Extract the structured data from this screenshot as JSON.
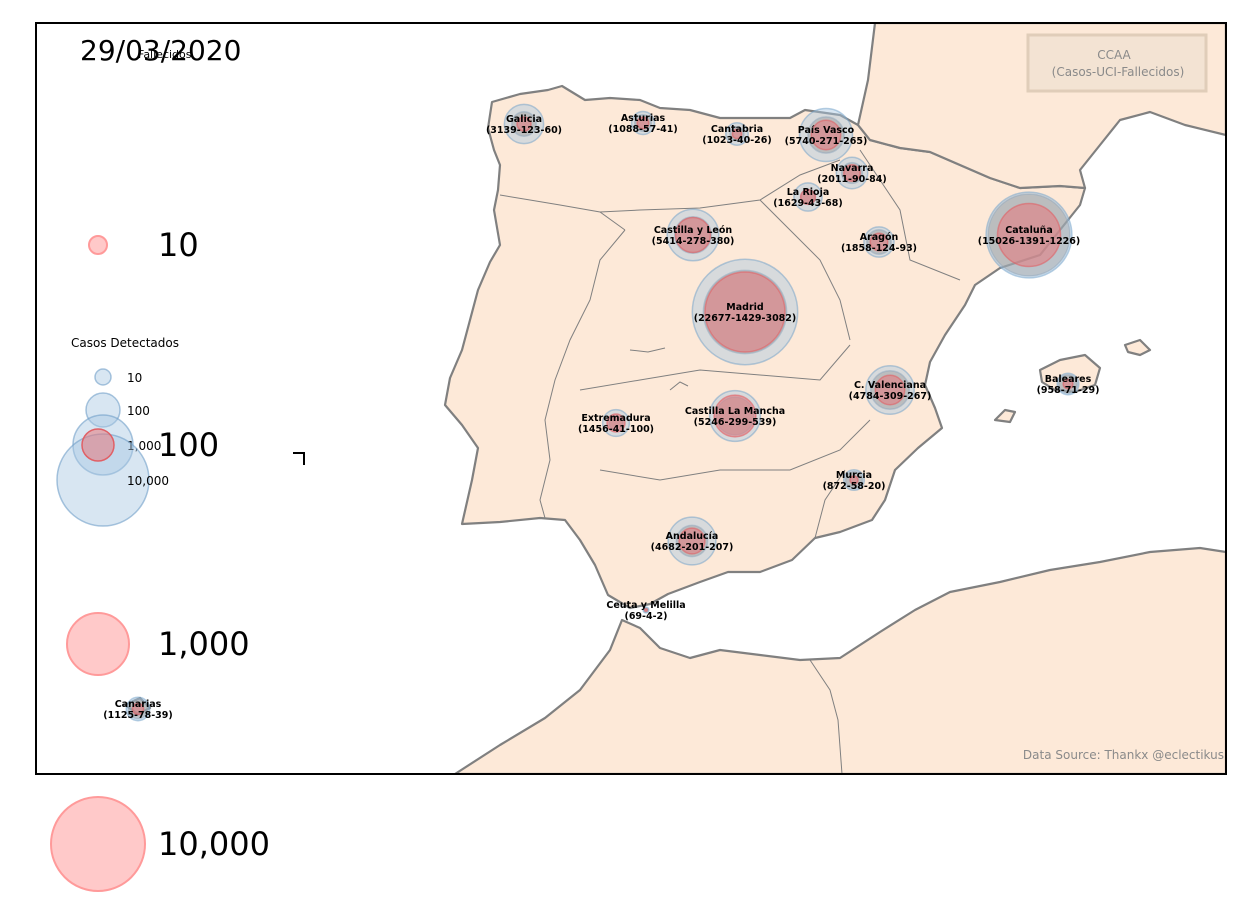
{
  "date": "29/03/2020",
  "legend_box": {
    "title": "CCAA",
    "subtitle": "(Casos-UCI-Fallecidos)"
  },
  "source": "Data Source: Thankx @eclectikus",
  "legend_deaths": {
    "title": "Fallecidos",
    "items": [
      {
        "value": 10,
        "label": "10"
      },
      {
        "value": 100,
        "label": "100"
      },
      {
        "value": 1000,
        "label": "1,000"
      },
      {
        "value": 10000,
        "label": "10,000"
      }
    ]
  },
  "legend_cases": {
    "title": "Casos Detectados",
    "items": [
      {
        "value": 10,
        "label": "10"
      },
      {
        "value": 100,
        "label": "100"
      },
      {
        "value": 1000,
        "label": "1,000"
      },
      {
        "value": 10000,
        "label": "10,000"
      }
    ]
  },
  "colors": {
    "land": "#fde9d8",
    "coast": "#808080",
    "cases": "#a9c8e2",
    "uci": "#9a9a9a",
    "deaths": "#e8787c"
  },
  "regions": [
    {
      "name": "Galicia",
      "label": "(3139-123-60)",
      "cases": 3139,
      "uci": 123,
      "deaths": 60
    },
    {
      "name": "Asturias",
      "label": "(1088-57-41)",
      "cases": 1088,
      "uci": 57,
      "deaths": 41
    },
    {
      "name": "Cantabria",
      "label": "(1023-40-26)",
      "cases": 1023,
      "uci": 40,
      "deaths": 26
    },
    {
      "name": "País Vasco",
      "label": "(5740-271-265)",
      "cases": 5740,
      "uci": 271,
      "deaths": 265
    },
    {
      "name": "Navarra",
      "label": "(2011-90-84)",
      "cases": 2011,
      "uci": 90,
      "deaths": 84
    },
    {
      "name": "La Rioja",
      "label": "(1629-43-68)",
      "cases": 1629,
      "uci": 43,
      "deaths": 68
    },
    {
      "name": "Castilla y León",
      "label": "(5414-278-380)",
      "cases": 5414,
      "uci": 278,
      "deaths": 380
    },
    {
      "name": "Aragón",
      "label": "(1858-124-93)",
      "cases": 1858,
      "uci": 124,
      "deaths": 93
    },
    {
      "name": "Cataluña",
      "label": "(15026-1391-1226)",
      "cases": 15026,
      "uci": 1391,
      "deaths": 1226
    },
    {
      "name": "Madrid",
      "label": "(22677-1429-3082)",
      "cases": 22677,
      "uci": 1429,
      "deaths": 3082
    },
    {
      "name": "Extremadura",
      "label": "(1456-41-100)",
      "cases": 1456,
      "uci": 41,
      "deaths": 100
    },
    {
      "name": "Castilla La Mancha",
      "label": "(5246-299-539)",
      "cases": 5246,
      "uci": 299,
      "deaths": 539
    },
    {
      "name": "C. Valenciana",
      "label": "(4784-309-267)",
      "cases": 4784,
      "uci": 309,
      "deaths": 267
    },
    {
      "name": "Baleares",
      "label": "(958-71-29)",
      "cases": 958,
      "uci": 71,
      "deaths": 29
    },
    {
      "name": "Murcia",
      "label": "(872-58-20)",
      "cases": 872,
      "uci": 58,
      "deaths": 20
    },
    {
      "name": "Andalucía",
      "label": "(4682-201-207)",
      "cases": 4682,
      "uci": 201,
      "deaths": 207
    },
    {
      "name": "Ceuta y Melilla",
      "label": "(69-4-2)",
      "cases": 69,
      "uci": 4,
      "deaths": 2
    },
    {
      "name": "Canarias",
      "label": "(1125-78-39)",
      "cases": 1125,
      "uci": 78,
      "deaths": 39
    }
  ]
}
